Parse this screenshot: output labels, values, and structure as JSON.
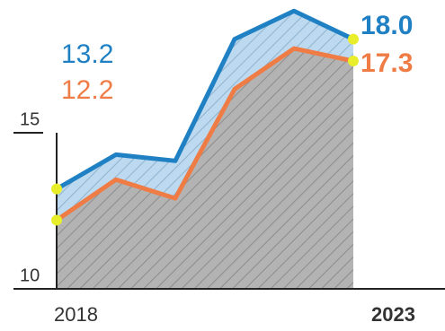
{
  "chart_data": {
    "type": "line",
    "categories": [
      "2018",
      null,
      null,
      null,
      null,
      "2023"
    ],
    "series": [
      {
        "color": "#1f80c3",
        "values": [
          13.2,
          14.3,
          14.1,
          18.0,
          18.9,
          18.0
        ],
        "value_labels": [
          "13.2",
          null,
          null,
          null,
          null,
          "18.0"
        ]
      },
      {
        "color": "#ef7b45",
        "values": [
          12.2,
          13.5,
          12.9,
          16.4,
          17.7,
          17.3
        ],
        "value_labels": [
          "12.2",
          null,
          null,
          null,
          null,
          "17.3"
        ]
      }
    ],
    "ylim": [
      10,
      19
    ],
    "yticks": [
      10,
      15
    ]
  }
}
